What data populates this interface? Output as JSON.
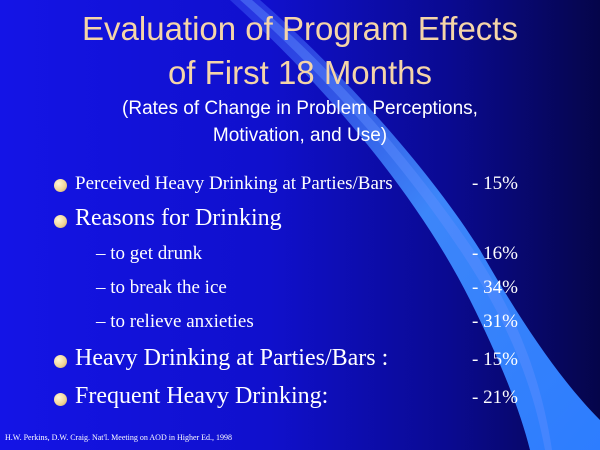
{
  "slide": {
    "title_line1": "Evaluation of Program Effects",
    "title_line2": "of First 18 Months",
    "subtitle_line1": "(Rates of Change in Problem Perceptions,",
    "subtitle_line2": "Motivation, and Use)",
    "bullets": [
      {
        "label": "Perceived Heavy Drinking at Parties/Bars",
        "value": "- 15%"
      },
      {
        "label": "Reasons for Drinking",
        "value": ""
      },
      {
        "label": "Heavy Drinking at Parties/Bars :",
        "value": "- 15%"
      },
      {
        "label": "Frequent Heavy Drinking:",
        "value": "- 21%"
      }
    ],
    "sub_bullets": [
      {
        "label": "– to get drunk",
        "value": "- 16%"
      },
      {
        "label": "– to break the ice",
        "value": "- 34%"
      },
      {
        "label": "– to relieve anxieties",
        "value": "- 31%"
      }
    ],
    "footer": "H.W. Perkins, D.W. Craig. Nat'l. Meeting on AOD in Higher Ed., 1998",
    "colors": {
      "background": "#1414e6",
      "title": "#f5d5a8",
      "text": "#ffffff",
      "bullet": "#f2d79a"
    }
  }
}
